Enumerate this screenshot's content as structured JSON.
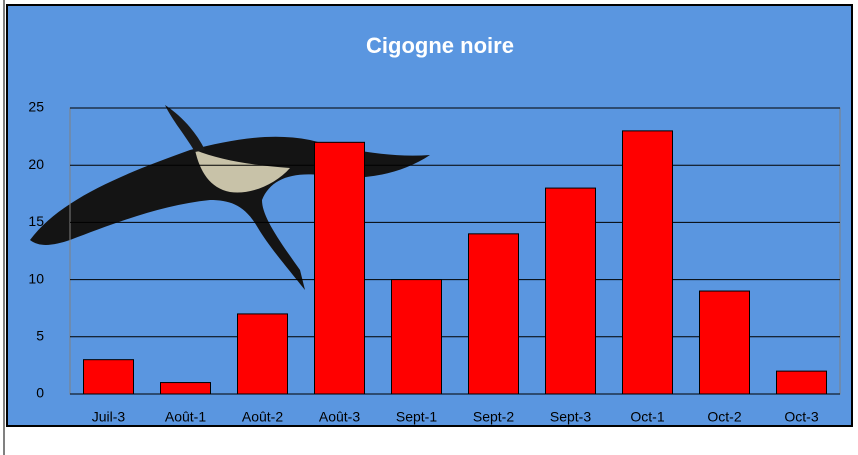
{
  "chart_data": {
    "type": "bar",
    "title": "Cigogne noire",
    "categories": [
      "Juil-3",
      "Août-1",
      "Août-2",
      "Août-3",
      "Sept-1",
      "Sept-2",
      "Sept-3",
      "Oct-1",
      "Oct-2",
      "Oct-3"
    ],
    "values": [
      3,
      1,
      7,
      22,
      10,
      14,
      18,
      23,
      9,
      2
    ],
    "color": "#ff0000",
    "ylim": [
      0,
      25
    ],
    "yticks": [
      0,
      5,
      10,
      15,
      20,
      25
    ],
    "grid": true
  }
}
